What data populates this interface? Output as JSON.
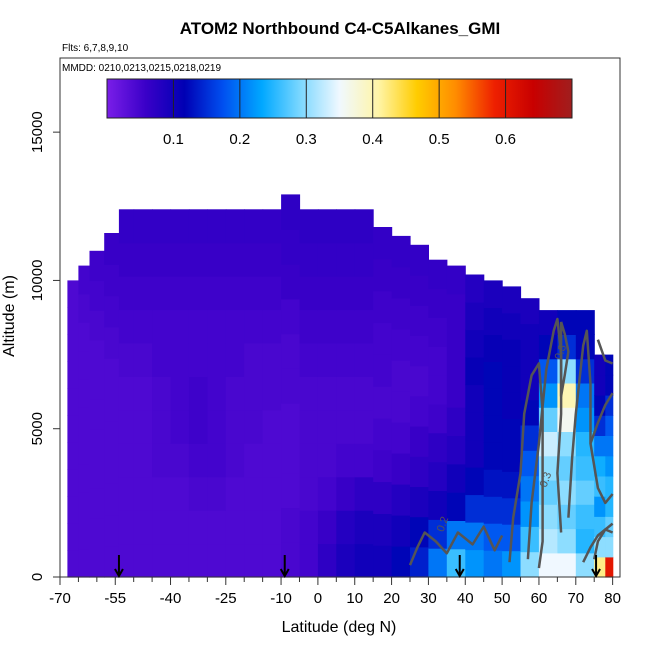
{
  "chart_data": {
    "type": "heatmap",
    "title": "ATOM2 Northbound C4-C5Alkanes_GMI",
    "flights_label": "Flts: 6,7,8,9,10",
    "dates_label": "MMDD: 0210,0213,0215,0218,0219",
    "xlabel": "Latitude (deg N)",
    "ylabel": "Altitude (m)",
    "xlim": [
      -70,
      82
    ],
    "ylim": [
      0,
      17500
    ],
    "x_ticks": [
      {
        "value": -70,
        "label": "-70"
      },
      {
        "value": -55,
        "label": "-55"
      },
      {
        "value": -40,
        "label": "-40"
      },
      {
        "value": -25,
        "label": "-25"
      },
      {
        "value": -10,
        "label": "-10"
      },
      {
        "value": 0,
        "label": "0"
      },
      {
        "value": 10,
        "label": "10"
      },
      {
        "value": 20,
        "label": "20"
      },
      {
        "value": 30,
        "label": "30"
      },
      {
        "value": 40,
        "label": "40"
      },
      {
        "value": 50,
        "label": "50"
      },
      {
        "value": 60,
        "label": "60"
      },
      {
        "value": 70,
        "label": "70"
      },
      {
        "value": 80,
        "label": "80"
      }
    ],
    "y_ticks": [
      {
        "value": 0,
        "label": "0"
      },
      {
        "value": 5000,
        "label": "5000"
      },
      {
        "value": 10000,
        "label": "10000"
      },
      {
        "value": 15000,
        "label": "15000"
      }
    ],
    "colorbar": {
      "min": 0.0,
      "max": 0.7,
      "ticks": [
        {
          "value": 0.1,
          "label": "0.1"
        },
        {
          "value": 0.2,
          "label": "0.2"
        },
        {
          "value": 0.3,
          "label": "0.3"
        },
        {
          "value": 0.4,
          "label": "0.4"
        },
        {
          "value": 0.5,
          "label": "0.5"
        },
        {
          "value": 0.6,
          "label": "0.6"
        }
      ],
      "colors": [
        "#7a1ee8",
        "#3a00c8",
        "#0000b4",
        "#0050f0",
        "#00a8ff",
        "#7dd8ff",
        "#f0f8ff",
        "#fff5a8",
        "#ffcc00",
        "#ff8c00",
        "#ee2000",
        "#c80000",
        "#a01e1e"
      ]
    },
    "flight_markers": [
      -54,
      -9,
      38.5,
      75.5
    ],
    "contour_labels": [
      {
        "text": "0.3",
        "x": 62,
        "y": 3000
      },
      {
        "text": "0.3",
        "x": 66,
        "y": 7300
      },
      {
        "text": "0.2",
        "x": 34,
        "y": 1500
      }
    ],
    "profiles": [
      {
        "xmin": -68,
        "xmax": -65,
        "ztop": 10000,
        "values": [
          0.04,
          0.04,
          0.04,
          0.04,
          0.04,
          0.04,
          0.04,
          0.04,
          0.04,
          0.04,
          0.04
        ]
      },
      {
        "xmin": -65,
        "xmax": -62,
        "ztop": 10500,
        "values": [
          0.04,
          0.04,
          0.04,
          0.04,
          0.04,
          0.04,
          0.04,
          0.04,
          0.04,
          0.045,
          0.05
        ]
      },
      {
        "xmin": -62,
        "xmax": -58,
        "ztop": 11000,
        "values": [
          0.04,
          0.04,
          0.04,
          0.04,
          0.04,
          0.04,
          0.04,
          0.04,
          0.045,
          0.05,
          0.055
        ]
      },
      {
        "xmin": -58,
        "xmax": -54,
        "ztop": 11600,
        "values": [
          0.04,
          0.04,
          0.04,
          0.04,
          0.04,
          0.04,
          0.04,
          0.045,
          0.05,
          0.055,
          0.06
        ]
      },
      {
        "xmin": -54,
        "xmax": -50,
        "ztop": 12400,
        "values": [
          0.04,
          0.04,
          0.04,
          0.04,
          0.04,
          0.04,
          0.045,
          0.05,
          0.055,
          0.06,
          0.065
        ]
      },
      {
        "xmin": -50,
        "xmax": -45,
        "ztop": 12400,
        "values": [
          0.04,
          0.04,
          0.04,
          0.04,
          0.04,
          0.04,
          0.045,
          0.05,
          0.055,
          0.06,
          0.065
        ]
      },
      {
        "xmin": -45,
        "xmax": -40,
        "ztop": 12400,
        "values": [
          0.04,
          0.04,
          0.04,
          0.045,
          0.045,
          0.045,
          0.05,
          0.05,
          0.055,
          0.06,
          0.065
        ]
      },
      {
        "xmin": -40,
        "xmax": -35,
        "ztop": 12400,
        "values": [
          0.04,
          0.04,
          0.04,
          0.045,
          0.05,
          0.05,
          0.05,
          0.05,
          0.055,
          0.06,
          0.065
        ]
      },
      {
        "xmin": -35,
        "xmax": -30,
        "ztop": 12400,
        "values": [
          0.04,
          0.04,
          0.045,
          0.05,
          0.055,
          0.055,
          0.05,
          0.05,
          0.055,
          0.06,
          0.065
        ]
      },
      {
        "xmin": -30,
        "xmax": -25,
        "ztop": 12400,
        "values": [
          0.04,
          0.04,
          0.045,
          0.05,
          0.05,
          0.05,
          0.05,
          0.05,
          0.055,
          0.06,
          0.065
        ]
      },
      {
        "xmin": -25,
        "xmax": -20,
        "ztop": 12400,
        "values": [
          0.04,
          0.04,
          0.04,
          0.045,
          0.045,
          0.045,
          0.05,
          0.05,
          0.055,
          0.06,
          0.065
        ]
      },
      {
        "xmin": -20,
        "xmax": -15,
        "ztop": 12400,
        "values": [
          0.04,
          0.04,
          0.04,
          0.04,
          0.045,
          0.045,
          0.045,
          0.05,
          0.055,
          0.06,
          0.065
        ]
      },
      {
        "xmin": -15,
        "xmax": -10,
        "ztop": 12400,
        "values": [
          0.04,
          0.04,
          0.04,
          0.04,
          0.04,
          0.045,
          0.045,
          0.05,
          0.055,
          0.06,
          0.065
        ]
      },
      {
        "xmin": -10,
        "xmax": -5,
        "ztop": 12900,
        "values": [
          0.045,
          0.045,
          0.04,
          0.04,
          0.04,
          0.045,
          0.045,
          0.05,
          0.06,
          0.065,
          0.07
        ]
      },
      {
        "xmin": -5,
        "xmax": 0,
        "ztop": 12400,
        "values": [
          0.05,
          0.05,
          0.045,
          0.045,
          0.045,
          0.045,
          0.05,
          0.055,
          0.06,
          0.065,
          0.07
        ]
      },
      {
        "xmin": 0,
        "xmax": 5,
        "ztop": 12400,
        "values": [
          0.07,
          0.06,
          0.05,
          0.045,
          0.045,
          0.045,
          0.05,
          0.055,
          0.06,
          0.065,
          0.07
        ]
      },
      {
        "xmin": 5,
        "xmax": 10,
        "ztop": 12400,
        "values": [
          0.09,
          0.08,
          0.06,
          0.05,
          0.045,
          0.045,
          0.05,
          0.055,
          0.06,
          0.065,
          0.07
        ]
      },
      {
        "xmin": 10,
        "xmax": 15,
        "ztop": 12400,
        "values": [
          0.1,
          0.09,
          0.07,
          0.05,
          0.045,
          0.045,
          0.05,
          0.055,
          0.06,
          0.065,
          0.07
        ]
      },
      {
        "xmin": 15,
        "xmax": 20,
        "ztop": 11800,
        "values": [
          0.1,
          0.09,
          0.07,
          0.055,
          0.05,
          0.045,
          0.05,
          0.05,
          0.055,
          0.06,
          0.065
        ]
      },
      {
        "xmin": 20,
        "xmax": 25,
        "ztop": 11500,
        "values": [
          0.12,
          0.1,
          0.08,
          0.06,
          0.05,
          0.045,
          0.045,
          0.05,
          0.055,
          0.06,
          0.065
        ]
      },
      {
        "xmin": 25,
        "xmax": 30,
        "ztop": 11200,
        "values": [
          0.14,
          0.12,
          0.09,
          0.07,
          0.06,
          0.05,
          0.045,
          0.05,
          0.055,
          0.06,
          0.065
        ]
      },
      {
        "xmin": 30,
        "xmax": 35,
        "ztop": 10700,
        "values": [
          0.2,
          0.15,
          0.1,
          0.08,
          0.07,
          0.055,
          0.05,
          0.05,
          0.055,
          0.06,
          0.065
        ]
      },
      {
        "xmin": 35,
        "xmax": 40,
        "ztop": 10500,
        "values": [
          0.26,
          0.2,
          0.12,
          0.1,
          0.08,
          0.07,
          0.06,
          0.06,
          0.06,
          0.06,
          0.065
        ]
      },
      {
        "xmin": 40,
        "xmax": 45,
        "ztop": 10200,
        "values": [
          0.22,
          0.2,
          0.15,
          0.12,
          0.1,
          0.1,
          0.1,
          0.11,
          0.1,
          0.09,
          0.08
        ]
      },
      {
        "xmin": 45,
        "xmax": 50,
        "ztop": 10000,
        "values": [
          0.2,
          0.18,
          0.15,
          0.13,
          0.12,
          0.12,
          0.12,
          0.12,
          0.11,
          0.1,
          0.09
        ]
      },
      {
        "xmin": 50,
        "xmax": 55,
        "ztop": 9800,
        "values": [
          0.22,
          0.18,
          0.15,
          0.13,
          0.12,
          0.12,
          0.11,
          0.11,
          0.11,
          0.1,
          0.09
        ]
      },
      {
        "xmin": 55,
        "xmax": 60,
        "ztop": 9400,
        "values": [
          0.3,
          0.26,
          0.22,
          0.2,
          0.18,
          0.15,
          0.12,
          0.1,
          0.1,
          0.1,
          0.09
        ]
      },
      {
        "xmin": 60,
        "xmax": 65,
        "ztop": 9000,
        "values": [
          0.35,
          0.32,
          0.3,
          0.28,
          0.3,
          0.33,
          0.28,
          0.22,
          0.18,
          0.12,
          0.1
        ]
      },
      {
        "xmin": 65,
        "xmax": 70,
        "ztop": 9000,
        "values": [
          0.35,
          0.3,
          0.28,
          0.3,
          0.28,
          0.3,
          0.36,
          0.4,
          0.3,
          0.15,
          0.12
        ]
      },
      {
        "xmin": 70,
        "xmax": 75,
        "ztop": 9000,
        "values": [
          0.3,
          0.25,
          0.26,
          0.28,
          0.26,
          0.25,
          0.22,
          0.2,
          0.15,
          0.12,
          0.12
        ]
      },
      {
        "xmin": 75,
        "xmax": 78,
        "ztop": 7500,
        "values": [
          0.42,
          0.3,
          0.26,
          0.22,
          0.26,
          0.24,
          0.2,
          0.15,
          0.12,
          0.1,
          0.1
        ]
      },
      {
        "xmin": 78,
        "xmax": 80,
        "ztop": 7500,
        "values": [
          0.6,
          0.3,
          0.28,
          0.25,
          0.25,
          0.22,
          0.2,
          0.18,
          0.15,
          0.12,
          0.12
        ]
      }
    ]
  }
}
